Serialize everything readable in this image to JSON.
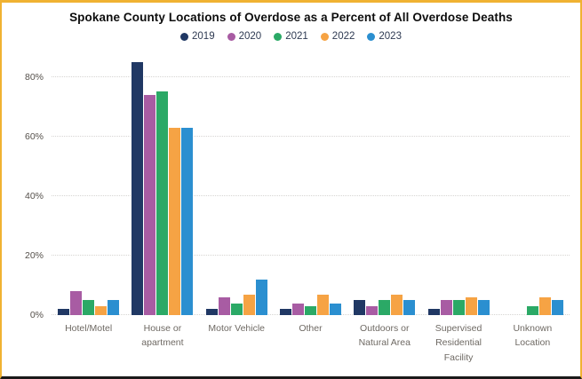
{
  "window": {
    "border_color": "#F0B232",
    "bottom_edge_color": "#1a1a1a",
    "background": "#ffffff"
  },
  "chart_data": {
    "type": "bar",
    "title": "Spokane County Locations of Overdose as a Percent of All Overdose Deaths",
    "categories": [
      "Hotel/Motel",
      "House or apartment",
      "Motor Vehicle",
      "Other",
      "Outdoors or Natural Area",
      "Supervised Residential Facility",
      "Unknown Location"
    ],
    "series": [
      {
        "name": "2019",
        "color": "#203864",
        "values": [
          2,
          85,
          2,
          2,
          5,
          2,
          0
        ]
      },
      {
        "name": "2020",
        "color": "#A85CA3",
        "values": [
          8,
          74,
          6,
          4,
          3,
          5,
          0
        ]
      },
      {
        "name": "2021",
        "color": "#2BA966",
        "values": [
          5,
          75,
          4,
          3,
          5,
          5,
          3
        ]
      },
      {
        "name": "2022",
        "color": "#F6A344",
        "values": [
          3,
          63,
          7,
          7,
          7,
          6,
          6
        ]
      },
      {
        "name": "2023",
        "color": "#2B8FD0",
        "values": [
          5,
          63,
          12,
          4,
          5,
          5,
          5
        ]
      }
    ],
    "y_ticks": [
      {
        "label": "0%",
        "value": 0
      },
      {
        "label": "20%",
        "value": 20
      },
      {
        "label": "40%",
        "value": 40
      },
      {
        "label": "60%",
        "value": 60
      },
      {
        "label": "80%",
        "value": 80
      }
    ],
    "ylim": [
      0,
      87
    ],
    "xlabel": "",
    "ylabel": "",
    "grid": "horizontal-dotted",
    "legend_position": "top-center",
    "units": "percent"
  }
}
